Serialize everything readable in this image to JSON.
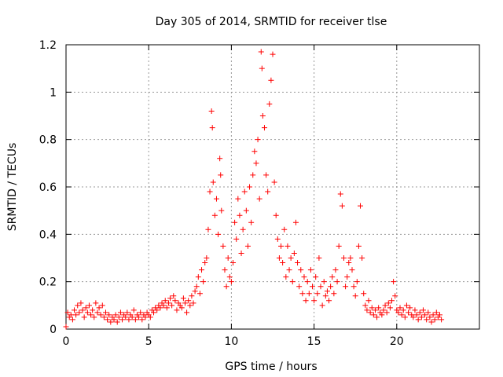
{
  "chart_data": {
    "type": "scatter",
    "title": "Day 305 of 2014, SRMTID for receiver tlse",
    "xlabel": "GPS time / hours",
    "ylabel": "SRMTID / TECUs",
    "xlim": [
      0,
      25
    ],
    "ylim": [
      0,
      1.2
    ],
    "grid": true,
    "legend": "none",
    "marker": "plus",
    "colors": {
      "series": "#ff0000",
      "axes": "#000000",
      "grid": "#999999"
    },
    "xticks": [
      0,
      5,
      10,
      15,
      20
    ],
    "xtick_labels": [
      "0",
      "5",
      "10",
      "15",
      "20"
    ],
    "yticks": [
      0,
      0.2,
      0.4,
      0.6,
      0.8,
      1.0,
      1.2
    ],
    "ytick_labels": [
      "0",
      "0.2",
      "0.4",
      "0.6",
      "0.8",
      "1",
      "1.2"
    ],
    "series": [
      {
        "name": "SRMTID",
        "points": [
          [
            0.0,
            0.01
          ],
          [
            0.1,
            0.07
          ],
          [
            0.2,
            0.05
          ],
          [
            0.3,
            0.06
          ],
          [
            0.4,
            0.04
          ],
          [
            0.5,
            0.08
          ],
          [
            0.6,
            0.06
          ],
          [
            0.7,
            0.1
          ],
          [
            0.8,
            0.07
          ],
          [
            0.9,
            0.11
          ],
          [
            1.0,
            0.08
          ],
          [
            1.1,
            0.05
          ],
          [
            1.2,
            0.09
          ],
          [
            1.3,
            0.07
          ],
          [
            1.4,
            0.1
          ],
          [
            1.5,
            0.06
          ],
          [
            1.6,
            0.08
          ],
          [
            1.7,
            0.05
          ],
          [
            1.8,
            0.11
          ],
          [
            1.9,
            0.07
          ],
          [
            2.0,
            0.09
          ],
          [
            2.1,
            0.06
          ],
          [
            2.2,
            0.1
          ],
          [
            2.3,
            0.05
          ],
          [
            2.4,
            0.07
          ],
          [
            2.5,
            0.04
          ],
          [
            2.6,
            0.06
          ],
          [
            2.7,
            0.03
          ],
          [
            2.8,
            0.05
          ],
          [
            2.9,
            0.04
          ],
          [
            3.0,
            0.06
          ],
          [
            3.1,
            0.03
          ],
          [
            3.2,
            0.05
          ],
          [
            3.3,
            0.07
          ],
          [
            3.4,
            0.04
          ],
          [
            3.5,
            0.06
          ],
          [
            3.6,
            0.05
          ],
          [
            3.7,
            0.07
          ],
          [
            3.8,
            0.04
          ],
          [
            3.9,
            0.06
          ],
          [
            4.0,
            0.05
          ],
          [
            4.1,
            0.08
          ],
          [
            4.2,
            0.04
          ],
          [
            4.3,
            0.06
          ],
          [
            4.4,
            0.05
          ],
          [
            4.5,
            0.07
          ],
          [
            4.6,
            0.04
          ],
          [
            4.7,
            0.06
          ],
          [
            4.8,
            0.05
          ],
          [
            4.9,
            0.07
          ],
          [
            5.0,
            0.06
          ],
          [
            5.1,
            0.05
          ],
          [
            5.2,
            0.08
          ],
          [
            5.3,
            0.07
          ],
          [
            5.4,
            0.09
          ],
          [
            5.5,
            0.08
          ],
          [
            5.6,
            0.1
          ],
          [
            5.7,
            0.09
          ],
          [
            5.8,
            0.11
          ],
          [
            5.9,
            0.1
          ],
          [
            6.0,
            0.12
          ],
          [
            6.1,
            0.09
          ],
          [
            6.2,
            0.11
          ],
          [
            6.3,
            0.13
          ],
          [
            6.4,
            0.1
          ],
          [
            6.5,
            0.14
          ],
          [
            6.6,
            0.12
          ],
          [
            6.7,
            0.08
          ],
          [
            6.8,
            0.11
          ],
          [
            6.9,
            0.1
          ],
          [
            7.0,
            0.09
          ],
          [
            7.1,
            0.13
          ],
          [
            7.2,
            0.11
          ],
          [
            7.3,
            0.07
          ],
          [
            7.4,
            0.12
          ],
          [
            7.5,
            0.1
          ],
          [
            7.6,
            0.14
          ],
          [
            7.7,
            0.11
          ],
          [
            7.8,
            0.16
          ],
          [
            7.9,
            0.18
          ],
          [
            8.0,
            0.22
          ],
          [
            8.1,
            0.15
          ],
          [
            8.2,
            0.25
          ],
          [
            8.3,
            0.2
          ],
          [
            8.4,
            0.28
          ],
          [
            8.5,
            0.3
          ],
          [
            8.6,
            0.42
          ],
          [
            8.7,
            0.58
          ],
          [
            8.8,
            0.92
          ],
          [
            8.85,
            0.85
          ],
          [
            8.9,
            0.62
          ],
          [
            9.0,
            0.48
          ],
          [
            9.1,
            0.55
          ],
          [
            9.2,
            0.4
          ],
          [
            9.3,
            0.72
          ],
          [
            9.35,
            0.65
          ],
          [
            9.4,
            0.5
          ],
          [
            9.5,
            0.35
          ],
          [
            9.6,
            0.25
          ],
          [
            9.7,
            0.18
          ],
          [
            9.8,
            0.3
          ],
          [
            9.9,
            0.22
          ],
          [
            10.0,
            0.2
          ],
          [
            10.1,
            0.28
          ],
          [
            10.2,
            0.45
          ],
          [
            10.3,
            0.38
          ],
          [
            10.4,
            0.55
          ],
          [
            10.5,
            0.48
          ],
          [
            10.6,
            0.32
          ],
          [
            10.7,
            0.42
          ],
          [
            10.8,
            0.58
          ],
          [
            10.9,
            0.5
          ],
          [
            11.0,
            0.35
          ],
          [
            11.1,
            0.6
          ],
          [
            11.2,
            0.45
          ],
          [
            11.3,
            0.65
          ],
          [
            11.4,
            0.75
          ],
          [
            11.5,
            0.7
          ],
          [
            11.6,
            0.8
          ],
          [
            11.7,
            0.55
          ],
          [
            11.8,
            1.17
          ],
          [
            11.85,
            1.1
          ],
          [
            11.9,
            0.9
          ],
          [
            12.0,
            0.85
          ],
          [
            12.1,
            0.65
          ],
          [
            12.2,
            0.58
          ],
          [
            12.3,
            0.95
          ],
          [
            12.4,
            1.05
          ],
          [
            12.5,
            1.16
          ],
          [
            12.6,
            0.62
          ],
          [
            12.7,
            0.48
          ],
          [
            12.8,
            0.38
          ],
          [
            12.9,
            0.3
          ],
          [
            13.0,
            0.35
          ],
          [
            13.1,
            0.28
          ],
          [
            13.2,
            0.42
          ],
          [
            13.3,
            0.22
          ],
          [
            13.4,
            0.35
          ],
          [
            13.5,
            0.25
          ],
          [
            13.6,
            0.3
          ],
          [
            13.7,
            0.2
          ],
          [
            13.8,
            0.32
          ],
          [
            13.9,
            0.45
          ],
          [
            14.0,
            0.28
          ],
          [
            14.1,
            0.18
          ],
          [
            14.2,
            0.25
          ],
          [
            14.3,
            0.15
          ],
          [
            14.4,
            0.22
          ],
          [
            14.5,
            0.12
          ],
          [
            14.6,
            0.2
          ],
          [
            14.7,
            0.15
          ],
          [
            14.8,
            0.25
          ],
          [
            14.9,
            0.18
          ],
          [
            15.0,
            0.12
          ],
          [
            15.1,
            0.22
          ],
          [
            15.2,
            0.15
          ],
          [
            15.3,
            0.3
          ],
          [
            15.4,
            0.18
          ],
          [
            15.5,
            0.1
          ],
          [
            15.6,
            0.2
          ],
          [
            15.7,
            0.14
          ],
          [
            15.8,
            0.16
          ],
          [
            15.9,
            0.12
          ],
          [
            16.0,
            0.18
          ],
          [
            16.1,
            0.22
          ],
          [
            16.2,
            0.15
          ],
          [
            16.3,
            0.25
          ],
          [
            16.4,
            0.2
          ],
          [
            16.5,
            0.35
          ],
          [
            16.6,
            0.57
          ],
          [
            16.7,
            0.52
          ],
          [
            16.8,
            0.3
          ],
          [
            16.9,
            0.18
          ],
          [
            17.0,
            0.22
          ],
          [
            17.1,
            0.28
          ],
          [
            17.2,
            0.3
          ],
          [
            17.3,
            0.25
          ],
          [
            17.4,
            0.18
          ],
          [
            17.5,
            0.14
          ],
          [
            17.6,
            0.2
          ],
          [
            17.7,
            0.35
          ],
          [
            17.8,
            0.52
          ],
          [
            17.9,
            0.3
          ],
          [
            18.0,
            0.15
          ],
          [
            18.1,
            0.1
          ],
          [
            18.2,
            0.08
          ],
          [
            18.3,
            0.12
          ],
          [
            18.4,
            0.07
          ],
          [
            18.5,
            0.09
          ],
          [
            18.6,
            0.06
          ],
          [
            18.7,
            0.08
          ],
          [
            18.8,
            0.05
          ],
          [
            18.9,
            0.09
          ],
          [
            19.0,
            0.07
          ],
          [
            19.1,
            0.06
          ],
          [
            19.2,
            0.08
          ],
          [
            19.3,
            0.1
          ],
          [
            19.4,
            0.07
          ],
          [
            19.5,
            0.11
          ],
          [
            19.6,
            0.09
          ],
          [
            19.7,
            0.12
          ],
          [
            19.8,
            0.2
          ],
          [
            19.9,
            0.14
          ],
          [
            20.0,
            0.08
          ],
          [
            20.1,
            0.07
          ],
          [
            20.2,
            0.09
          ],
          [
            20.3,
            0.06
          ],
          [
            20.4,
            0.08
          ],
          [
            20.5,
            0.05
          ],
          [
            20.6,
            0.1
          ],
          [
            20.7,
            0.07
          ],
          [
            20.8,
            0.09
          ],
          [
            20.9,
            0.06
          ],
          [
            21.0,
            0.05
          ],
          [
            21.1,
            0.08
          ],
          [
            21.2,
            0.06
          ],
          [
            21.3,
            0.04
          ],
          [
            21.4,
            0.07
          ],
          [
            21.5,
            0.05
          ],
          [
            21.6,
            0.08
          ],
          [
            21.7,
            0.06
          ],
          [
            21.8,
            0.04
          ],
          [
            21.9,
            0.07
          ],
          [
            22.0,
            0.05
          ],
          [
            22.1,
            0.03
          ],
          [
            22.2,
            0.06
          ],
          [
            22.3,
            0.04
          ],
          [
            22.4,
            0.07
          ],
          [
            22.5,
            0.05
          ],
          [
            22.6,
            0.06
          ],
          [
            22.7,
            0.04
          ]
        ]
      }
    ]
  }
}
